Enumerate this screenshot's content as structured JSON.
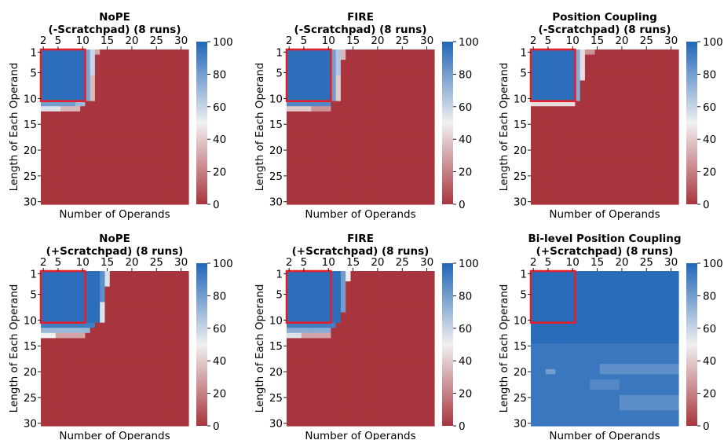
{
  "figure": {
    "colormap": {
      "low": "#a8353d",
      "mid": "#f0f0f0",
      "high": "#2166b8"
    },
    "highlight_box_color": "#e2202a"
  },
  "chart_data": [
    {
      "type": "heatmap",
      "title": [
        "NoPE",
        "(-Scratchpad) (8 runs)"
      ],
      "xlabel": "Number of Operands",
      "ylabel": "Length of Each Operand",
      "x_range": [
        2,
        31
      ],
      "y_range": [
        1,
        30
      ],
      "xticks": [
        2,
        5,
        10,
        15,
        20,
        25,
        30
      ],
      "yticks": [
        1,
        5,
        10,
        15,
        20,
        25,
        30
      ],
      "colorbar": {
        "min": 0,
        "max": 100,
        "ticks": [
          0,
          20,
          40,
          60,
          80,
          100
        ]
      },
      "training_box": {
        "x": [
          2,
          10
        ],
        "y": [
          1,
          10
        ]
      },
      "regions": [
        {
          "x": [
            2,
            10
          ],
          "y": [
            1,
            10
          ],
          "value": 97
        },
        {
          "x": [
            11,
            11
          ],
          "y": [
            1,
            10
          ],
          "value": 78
        },
        {
          "x": [
            12,
            12
          ],
          "y": [
            1,
            5
          ],
          "value": 60
        },
        {
          "x": [
            12,
            12
          ],
          "y": [
            6,
            10
          ],
          "value": 35
        },
        {
          "x": [
            13,
            13
          ],
          "y": [
            1,
            1
          ],
          "value": 30
        },
        {
          "x": [
            2,
            8
          ],
          "y": [
            11,
            11
          ],
          "value": 80
        },
        {
          "x": [
            9,
            10
          ],
          "y": [
            11,
            11
          ],
          "value": 70
        },
        {
          "x": [
            2,
            5
          ],
          "y": [
            12,
            12
          ],
          "value": 55
        },
        {
          "x": [
            6,
            9
          ],
          "y": [
            12,
            12
          ],
          "value": 35
        }
      ],
      "default_value": 0
    },
    {
      "type": "heatmap",
      "title": [
        "FIRE",
        "(-Scratchpad) (8 runs)"
      ],
      "xlabel": "Number of Operands",
      "ylabel": "Length of Each Operand",
      "x_range": [
        2,
        31
      ],
      "y_range": [
        1,
        30
      ],
      "xticks": [
        2,
        5,
        10,
        15,
        20,
        25,
        30
      ],
      "yticks": [
        1,
        5,
        10,
        15,
        20,
        25,
        30
      ],
      "colorbar": {
        "min": 0,
        "max": 100,
        "ticks": [
          0,
          20,
          40,
          60,
          80,
          100
        ]
      },
      "training_box": {
        "x": [
          2,
          10
        ],
        "y": [
          1,
          10
        ]
      },
      "regions": [
        {
          "x": [
            2,
            10
          ],
          "y": [
            1,
            10
          ],
          "value": 97
        },
        {
          "x": [
            11,
            11
          ],
          "y": [
            1,
            10
          ],
          "value": 80
        },
        {
          "x": [
            12,
            12
          ],
          "y": [
            1,
            5
          ],
          "value": 65
        },
        {
          "x": [
            12,
            12
          ],
          "y": [
            6,
            10
          ],
          "value": 40
        },
        {
          "x": [
            13,
            13
          ],
          "y": [
            1,
            2
          ],
          "value": 35
        },
        {
          "x": [
            2,
            10
          ],
          "y": [
            11,
            11
          ],
          "value": 88
        },
        {
          "x": [
            2,
            6
          ],
          "y": [
            12,
            12
          ],
          "value": 40
        },
        {
          "x": [
            7,
            10
          ],
          "y": [
            12,
            12
          ],
          "value": 25
        }
      ],
      "default_value": 0
    },
    {
      "type": "heatmap",
      "title": [
        "Position Coupling",
        "(-Scratchpad) (8 runs)"
      ],
      "xlabel": "Number of Operands",
      "ylabel": "Length of Each Operand",
      "x_range": [
        2,
        31
      ],
      "y_range": [
        1,
        30
      ],
      "xticks": [
        2,
        5,
        10,
        15,
        20,
        25,
        30
      ],
      "yticks": [
        1,
        5,
        10,
        15,
        20,
        25,
        30
      ],
      "colorbar": {
        "min": 0,
        "max": 100,
        "ticks": [
          0,
          20,
          40,
          60,
          80,
          100
        ]
      },
      "training_box": {
        "x": [
          2,
          10
        ],
        "y": [
          1,
          10
        ]
      },
      "regions": [
        {
          "x": [
            2,
            10
          ],
          "y": [
            1,
            10
          ],
          "value": 97
        },
        {
          "x": [
            11,
            11
          ],
          "y": [
            1,
            10
          ],
          "value": 75
        },
        {
          "x": [
            12,
            12
          ],
          "y": [
            1,
            6
          ],
          "value": 45
        },
        {
          "x": [
            13,
            14
          ],
          "y": [
            1,
            1
          ],
          "value": 25
        },
        {
          "x": [
            2,
            10
          ],
          "y": [
            11,
            11
          ],
          "value": 45
        }
      ],
      "default_value": 0
    },
    {
      "type": "heatmap",
      "title": [
        "NoPE",
        "(+Scratchpad) (8 runs)"
      ],
      "xlabel": "Number of Operands",
      "ylabel": "Length of Each Operand",
      "x_range": [
        2,
        31
      ],
      "y_range": [
        1,
        30
      ],
      "xticks": [
        2,
        5,
        10,
        15,
        20,
        25,
        30
      ],
      "yticks": [
        1,
        5,
        10,
        15,
        20,
        25,
        30
      ],
      "colorbar": {
        "min": 0,
        "max": 100,
        "ticks": [
          0,
          20,
          40,
          60,
          80,
          100
        ]
      },
      "training_box": {
        "x": [
          2,
          10
        ],
        "y": [
          1,
          10
        ]
      },
      "regions": [
        {
          "x": [
            2,
            13
          ],
          "y": [
            1,
            10
          ],
          "value": 97
        },
        {
          "x": [
            14,
            14
          ],
          "y": [
            1,
            6
          ],
          "value": 85
        },
        {
          "x": [
            15,
            15
          ],
          "y": [
            1,
            3
          ],
          "value": 55
        },
        {
          "x": [
            14,
            14
          ],
          "y": [
            7,
            10
          ],
          "value": 55
        },
        {
          "x": [
            2,
            12
          ],
          "y": [
            11,
            11
          ],
          "value": 92
        },
        {
          "x": [
            2,
            11
          ],
          "y": [
            12,
            12
          ],
          "value": 70
        },
        {
          "x": [
            2,
            4
          ],
          "y": [
            13,
            13
          ],
          "value": 50
        },
        {
          "x": [
            5,
            10
          ],
          "y": [
            13,
            13
          ],
          "value": 30
        }
      ],
      "default_value": 0
    },
    {
      "type": "heatmap",
      "title": [
        "FIRE",
        "(+Scratchpad) (8 runs)"
      ],
      "xlabel": "Number of Operands",
      "ylabel": "Length of Each Operand",
      "x_range": [
        2,
        31
      ],
      "y_range": [
        1,
        30
      ],
      "xticks": [
        2,
        5,
        10,
        15,
        20,
        25,
        30
      ],
      "yticks": [
        1,
        5,
        10,
        15,
        20,
        25,
        30
      ],
      "colorbar": {
        "min": 0,
        "max": 100,
        "ticks": [
          0,
          20,
          40,
          60,
          80,
          100
        ]
      },
      "training_box": {
        "x": [
          2,
          10
        ],
        "y": [
          1,
          10
        ]
      },
      "regions": [
        {
          "x": [
            2,
            12
          ],
          "y": [
            1,
            10
          ],
          "value": 97
        },
        {
          "x": [
            13,
            13
          ],
          "y": [
            1,
            8
          ],
          "value": 80
        },
        {
          "x": [
            14,
            14
          ],
          "y": [
            1,
            2
          ],
          "value": 50
        },
        {
          "x": [
            2,
            11
          ],
          "y": [
            11,
            11
          ],
          "value": 92
        },
        {
          "x": [
            2,
            10
          ],
          "y": [
            12,
            12
          ],
          "value": 75
        },
        {
          "x": [
            2,
            4
          ],
          "y": [
            13,
            13
          ],
          "value": 55
        },
        {
          "x": [
            5,
            10
          ],
          "y": [
            13,
            13
          ],
          "value": 30
        }
      ],
      "default_value": 0
    },
    {
      "type": "heatmap",
      "title": [
        "Bi-level Position Coupling",
        "(+Scratchpad) (8 runs)"
      ],
      "xlabel": "Number of Operands",
      "ylabel": "Length of Each Operand",
      "x_range": [
        2,
        31
      ],
      "y_range": [
        1,
        30
      ],
      "xticks": [
        2,
        5,
        10,
        15,
        20,
        25,
        30
      ],
      "yticks": [
        1,
        5,
        10,
        15,
        20,
        25,
        30
      ],
      "colorbar": {
        "min": 0,
        "max": 100,
        "ticks": [
          0,
          20,
          40,
          60,
          80,
          100
        ]
      },
      "training_box": {
        "x": [
          2,
          10
        ],
        "y": [
          1,
          10
        ]
      },
      "regions": [
        {
          "x": [
            2,
            31
          ],
          "y": [
            1,
            14
          ],
          "value": 98
        },
        {
          "x": [
            2,
            31
          ],
          "y": [
            15,
            30
          ],
          "value": 94
        },
        {
          "x": [
            16,
            31
          ],
          "y": [
            19,
            20
          ],
          "value": 85
        },
        {
          "x": [
            5,
            6
          ],
          "y": [
            20,
            20
          ],
          "value": 80
        },
        {
          "x": [
            20,
            31
          ],
          "y": [
            25,
            27
          ],
          "value": 86
        },
        {
          "x": [
            14,
            19
          ],
          "y": [
            22,
            23
          ],
          "value": 88
        }
      ],
      "default_value": 100
    }
  ]
}
